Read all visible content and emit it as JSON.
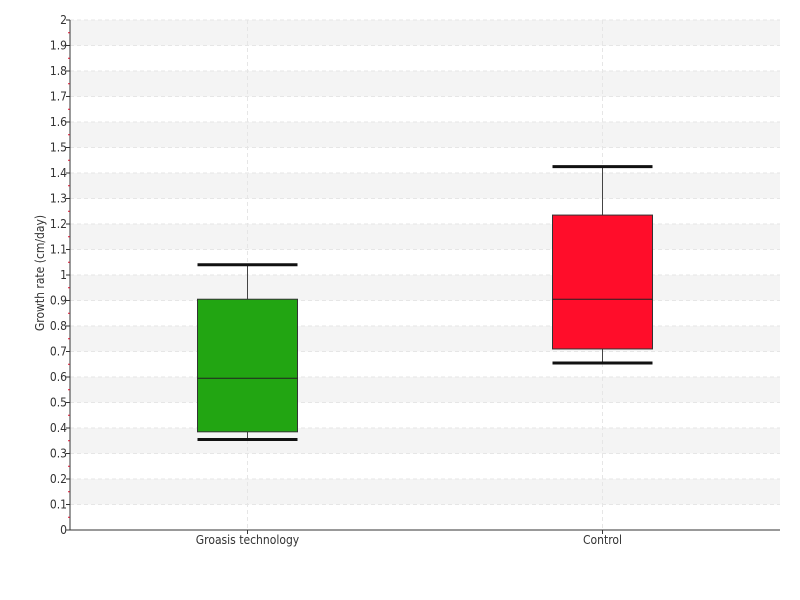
{
  "chart_data": {
    "type": "boxplot",
    "title": "",
    "xlabel": "",
    "ylabel": "Growth rate (cm/day)",
    "ylim": [
      0,
      2
    ],
    "yticks": [
      "0",
      "0.1",
      "0.2",
      "0.3",
      "0.4",
      "0.5",
      "0.6",
      "0.7",
      "0.8",
      "0.9",
      "1",
      "1.1",
      "1.2",
      "1.3",
      "1.4",
      "1.5",
      "1.6",
      "1.7",
      "1.8",
      "1.9",
      "2"
    ],
    "grid": true,
    "legend": "none",
    "categories": [
      "Groasis technology",
      "Control"
    ],
    "series": [
      {
        "category": "Groasis technology",
        "min": 0.355,
        "q1": 0.385,
        "median": 0.595,
        "q3": 0.905,
        "max": 1.04,
        "color": "#22a512"
      },
      {
        "category": "Control",
        "min": 0.655,
        "q1": 0.71,
        "median": 0.905,
        "q3": 1.235,
        "max": 1.425,
        "color": "#ff0d2a"
      }
    ]
  }
}
